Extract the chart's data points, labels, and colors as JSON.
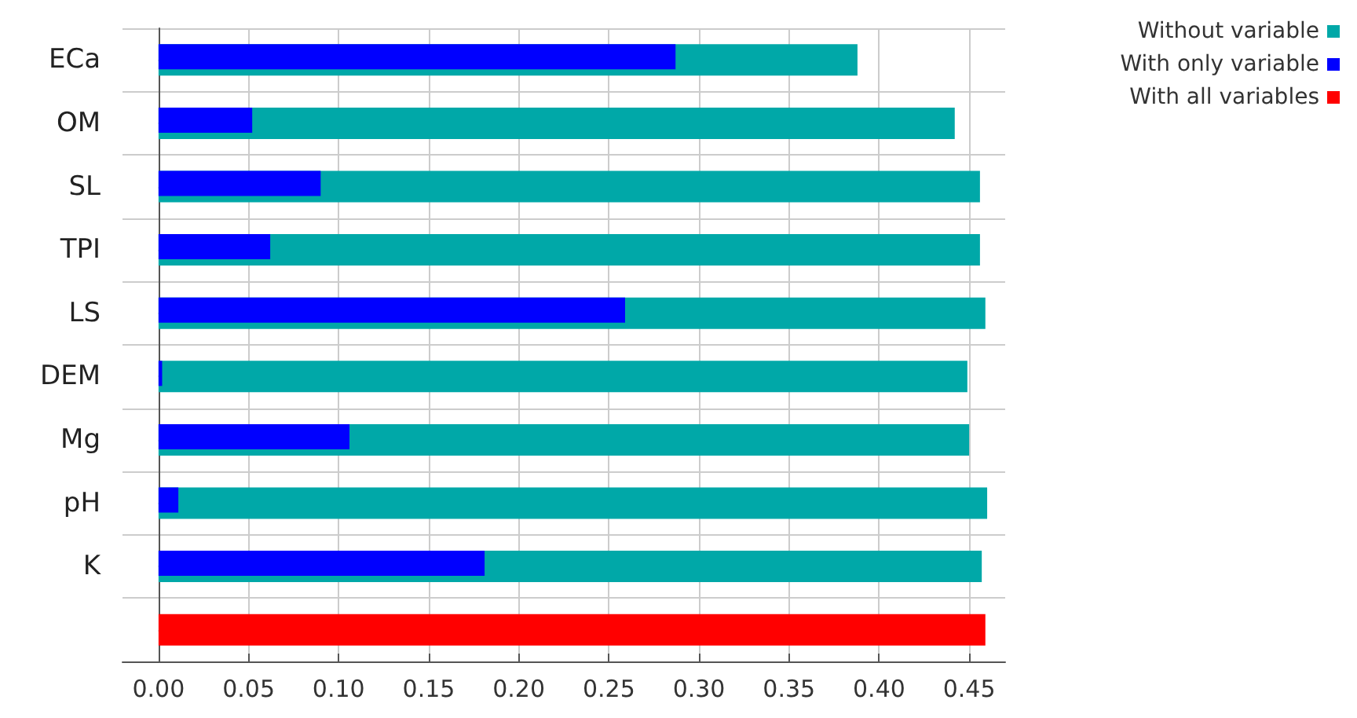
{
  "chart_data": {
    "type": "bar",
    "orientation": "horizontal",
    "categories": [
      "ECa",
      "OM",
      "SL",
      "TPI",
      "LS",
      "DEM",
      "Mg",
      "pH",
      "K",
      null
    ],
    "series": [
      {
        "name": "Without variable",
        "color": "#00a8a8",
        "values": [
          0.388,
          0.442,
          0.456,
          0.456,
          0.459,
          0.449,
          0.45,
          0.46,
          0.457,
          null
        ]
      },
      {
        "name": "With only variable",
        "color": "#0000ff",
        "values": [
          0.287,
          0.052,
          0.09,
          0.062,
          0.259,
          0.002,
          0.106,
          0.011,
          0.181,
          null
        ]
      },
      {
        "name": "With all variables",
        "color": "#ff0000",
        "values": [
          null,
          null,
          null,
          null,
          null,
          null,
          null,
          null,
          null,
          0.459
        ]
      }
    ],
    "xlim": [
      -0.02,
      0.47
    ],
    "xticks": [
      {
        "value": 0,
        "label": "0.00"
      },
      {
        "value": 0.05,
        "label": "0.05"
      },
      {
        "value": 0.1,
        "label": "0.10"
      },
      {
        "value": 0.15,
        "label": "0.15"
      },
      {
        "value": 0.2,
        "label": "0.20"
      },
      {
        "value": 0.25,
        "label": "0.25"
      },
      {
        "value": 0.3,
        "label": "0.30"
      },
      {
        "value": 0.35,
        "label": "0.35"
      },
      {
        "value": 0.4,
        "label": "0.40"
      },
      {
        "value": 0.45,
        "label": "0.45"
      }
    ],
    "grid": true,
    "legend": "top right"
  }
}
